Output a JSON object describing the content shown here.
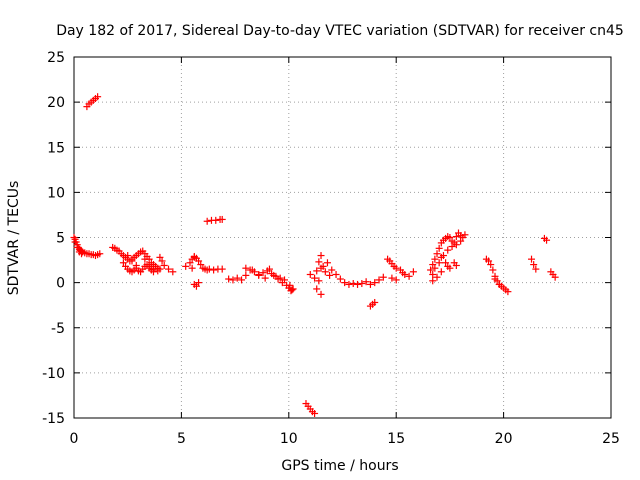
{
  "chart_data": {
    "type": "scatter",
    "title": "Day 182 of 2017, Sidereal Day-to-day VTEC variation (SDTVAR) for receiver cn45",
    "xlabel": "GPS time / hours",
    "ylabel": "SDTVAR / TECUs",
    "xlim": [
      0,
      25
    ],
    "ylim": [
      -15,
      25
    ],
    "xticks": [
      0,
      5,
      10,
      15,
      20,
      25
    ],
    "yticks": [
      -15,
      -10,
      -5,
      0,
      5,
      10,
      15,
      20,
      25
    ],
    "xtick_labels": [
      "0",
      "5",
      "10",
      "15",
      "20",
      "25"
    ],
    "ytick_labels": [
      "-15",
      "-10",
      "-5",
      "0",
      "5",
      "10",
      "15",
      "20",
      "25"
    ],
    "grid": true,
    "marker": "+",
    "marker_color": "#ff0000",
    "series": [
      {
        "name": "cn45",
        "x": [
          0.0,
          0.05,
          0.1,
          0.15,
          0.2,
          0.25,
          0.3,
          0.35,
          0.4,
          0.5,
          0.6,
          0.7,
          0.8,
          0.9,
          1.0,
          1.1,
          1.2,
          0.05,
          0.15,
          0.25,
          0.35,
          0.6,
          0.7,
          0.8,
          0.9,
          1.0,
          1.1,
          1.8,
          1.9,
          2.0,
          2.1,
          2.2,
          2.3,
          2.4,
          2.5,
          2.6,
          2.7,
          2.8,
          2.9,
          3.0,
          3.1,
          3.2,
          3.3,
          3.4,
          3.5,
          3.6,
          3.7,
          3.8,
          3.9,
          4.0,
          4.1,
          4.2,
          4.4,
          4.6,
          2.3,
          2.4,
          2.5,
          2.6,
          2.7,
          2.8,
          2.9,
          3.0,
          3.1,
          3.2,
          3.3,
          3.4,
          3.5,
          3.6,
          3.7,
          3.9,
          2.5,
          2.7,
          2.9,
          3.3,
          3.5,
          3.7,
          4.0,
          5.2,
          5.4,
          5.5,
          5.6,
          5.7,
          5.8,
          5.9,
          6.0,
          6.1,
          6.2,
          6.3,
          6.5,
          6.7,
          6.9,
          5.6,
          5.7,
          5.8,
          5.5,
          5.6,
          6.2,
          6.4,
          6.6,
          6.8,
          6.9,
          7.2,
          7.4,
          7.6,
          7.8,
          8.0,
          8.2,
          8.4,
          8.6,
          8.8,
          9.0,
          9.2,
          9.4,
          9.6,
          9.8,
          8.0,
          8.3,
          8.6,
          8.9,
          9.1,
          9.3,
          9.5,
          9.7,
          9.9,
          10.0,
          10.1,
          10.2,
          10.05,
          10.15,
          10.8,
          10.9,
          11.0,
          11.1,
          11.2,
          11.0,
          11.2,
          11.4,
          11.6,
          11.8,
          12.0,
          12.2,
          11.3,
          11.5,
          11.7,
          11.9,
          11.3,
          11.5,
          11.5,
          11.4,
          12.4,
          12.6,
          12.8,
          13.0,
          13.2,
          13.4,
          13.6,
          13.8,
          14.0,
          14.2,
          14.4,
          13.8,
          13.9,
          14.0,
          14.6,
          14.7,
          14.8,
          14.9,
          15.0,
          15.2,
          15.4,
          15.6,
          15.8,
          14.8,
          15.0,
          15.3,
          16.6,
          16.7,
          16.8,
          16.9,
          17.0,
          17.1,
          17.2,
          17.3,
          17.4,
          17.5,
          17.6,
          17.7,
          17.8,
          17.9,
          18.0,
          18.1,
          18.2,
          16.8,
          17.0,
          17.2,
          17.4,
          17.6,
          17.8,
          18.0,
          16.7,
          16.9,
          17.1,
          17.3,
          17.5,
          17.7,
          16.7,
          17.1,
          17.4,
          17.8,
          19.2,
          19.3,
          19.4,
          19.5,
          19.6,
          19.7,
          19.8,
          19.9,
          20.0,
          20.1,
          20.2,
          19.6,
          19.8,
          21.3,
          21.4,
          21.5,
          21.9,
          22.0,
          22.2,
          22.3,
          22.4
        ],
        "y": [
          5.0,
          4.8,
          4.5,
          4.2,
          3.9,
          3.7,
          3.6,
          3.5,
          3.4,
          3.3,
          3.2,
          3.2,
          3.1,
          3.1,
          3.0,
          3.1,
          3.2,
          4.5,
          3.9,
          3.4,
          3.2,
          19.5,
          19.8,
          20.0,
          20.2,
          20.4,
          20.6,
          3.9,
          3.8,
          3.6,
          3.5,
          3.2,
          3.0,
          2.8,
          2.6,
          2.4,
          2.6,
          2.8,
          3.0,
          3.2,
          3.4,
          3.5,
          3.2,
          2.9,
          2.6,
          2.2,
          2.0,
          1.8,
          1.6,
          2.8,
          2.4,
          1.9,
          1.5,
          1.2,
          2.2,
          1.8,
          1.5,
          1.3,
          1.2,
          1.4,
          1.6,
          1.3,
          1.2,
          1.5,
          1.8,
          2.0,
          1.6,
          1.4,
          1.5,
          1.3,
          3.0,
          2.4,
          1.9,
          2.6,
          1.8,
          1.2,
          1.5,
          1.8,
          2.2,
          2.6,
          2.9,
          2.7,
          2.4,
          2.0,
          1.6,
          1.5,
          1.4,
          1.5,
          1.4,
          1.5,
          1.5,
          -0.2,
          -0.4,
          0.0,
          1.6,
          2.8,
          6.8,
          6.9,
          6.9,
          7.0,
          7.0,
          0.4,
          0.3,
          0.5,
          0.3,
          0.8,
          1.4,
          1.2,
          0.9,
          1.1,
          1.3,
          1.0,
          0.7,
          0.5,
          0.3,
          1.6,
          1.4,
          0.8,
          0.5,
          1.5,
          0.8,
          0.4,
          0.0,
          -0.3,
          -0.6,
          -0.9,
          -0.7,
          -0.3,
          -0.8,
          -13.4,
          -13.7,
          -14.0,
          -14.3,
          -14.5,
          0.9,
          0.5,
          0.2,
          1.8,
          2.2,
          1.4,
          0.9,
          1.3,
          1.6,
          1.2,
          0.8,
          -0.7,
          -1.3,
          3.0,
          2.3,
          0.4,
          0.0,
          -0.2,
          -0.1,
          -0.2,
          -0.1,
          0.1,
          -0.2,
          0.0,
          0.3,
          0.6,
          -2.6,
          -2.4,
          -2.2,
          2.6,
          2.4,
          2.1,
          1.8,
          1.6,
          1.4,
          0.9,
          0.7,
          1.2,
          0.5,
          0.3,
          1.1,
          1.4,
          2.0,
          2.6,
          3.2,
          3.8,
          4.4,
          4.7,
          4.9,
          5.1,
          5.0,
          4.6,
          4.4,
          5.1,
          5.5,
          5.2,
          5.0,
          5.3,
          1.6,
          2.2,
          3.0,
          3.6,
          4.0,
          4.2,
          4.6,
          0.9,
          0.6,
          2.8,
          2.2,
          1.6,
          2.2,
          0.2,
          1.2,
          1.8,
          1.9,
          2.6,
          2.4,
          2.0,
          1.4,
          0.7,
          0.2,
          -0.2,
          -0.4,
          -0.6,
          -0.8,
          -1.0,
          0.4,
          -0.2,
          2.6,
          2.0,
          1.5,
          4.9,
          4.7,
          1.2,
          0.9,
          0.6
        ]
      }
    ]
  }
}
